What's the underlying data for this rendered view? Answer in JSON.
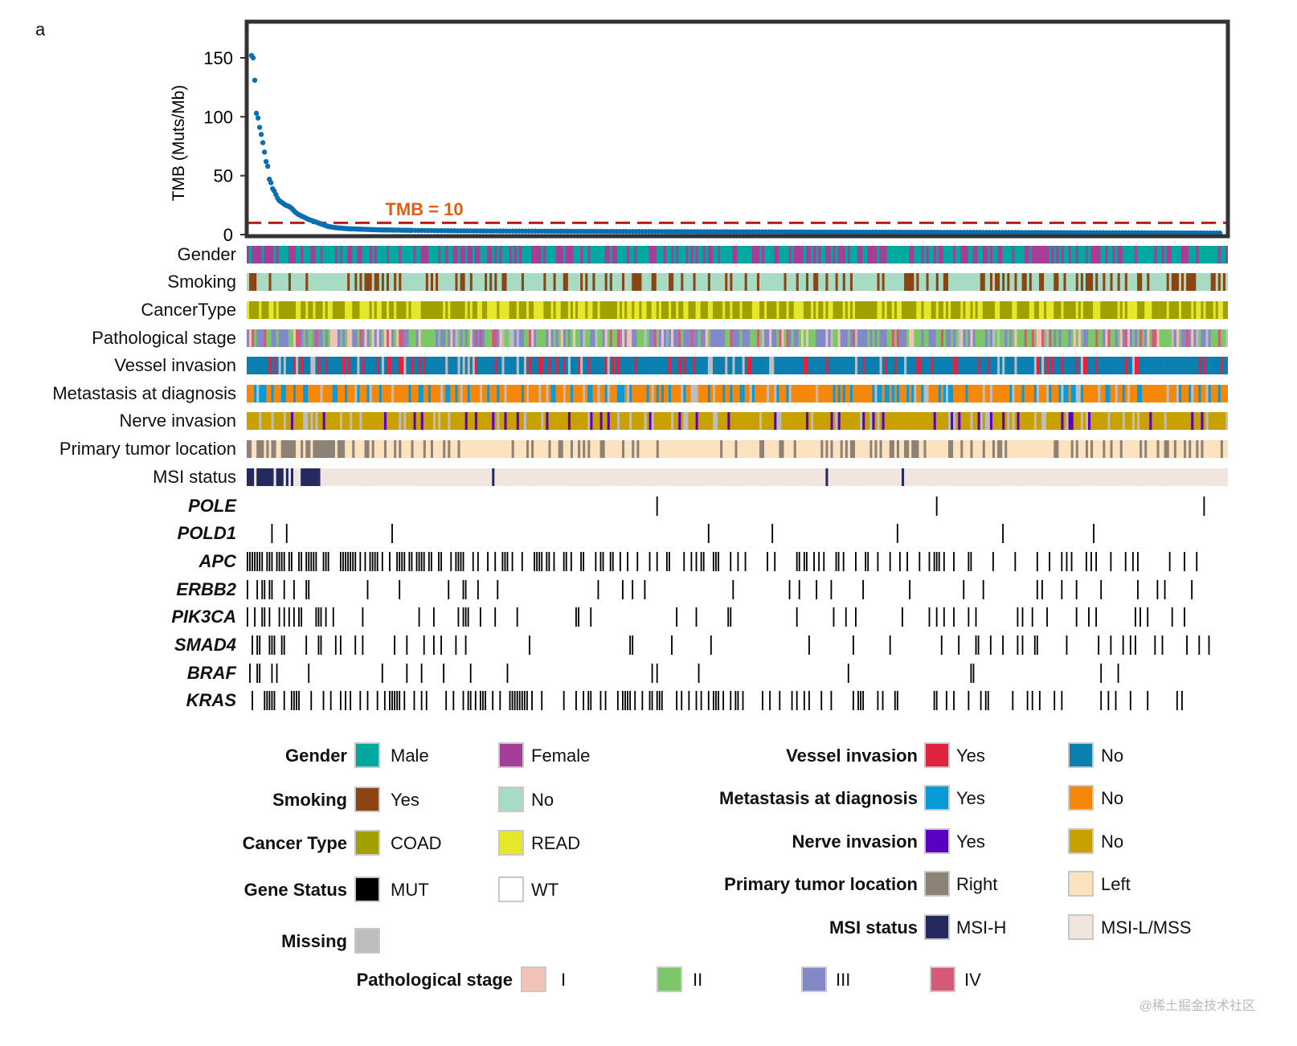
{
  "panel_letter": "a",
  "chart_data": {
    "type": "scatter",
    "ylabel": "TMB (Muts/Mb)",
    "ylim": [
      0,
      150
    ],
    "yticks": [
      "0",
      "50",
      "100",
      "150"
    ],
    "ytick_values": [
      0,
      50,
      100,
      150
    ],
    "threshold": {
      "value": 10,
      "label": "TMB = 10",
      "color": "#b71c1c",
      "label_color": "#e35f0e"
    },
    "point_color": "#0a6fb0",
    "series": [
      {
        "x": [
          1,
          2,
          3,
          4,
          5,
          6,
          7,
          8,
          9,
          10,
          11,
          12,
          13,
          14,
          15,
          16,
          17,
          18,
          20,
          22,
          24,
          26,
          28,
          30,
          33,
          36,
          40,
          44,
          48,
          52,
          56,
          60,
          70,
          80,
          90,
          100,
          120,
          150,
          200,
          260,
          320,
          380,
          440,
          500,
          560,
          600
        ],
        "y": [
          152,
          150,
          131,
          103,
          99,
          91,
          85,
          78,
          70,
          62,
          58,
          47,
          44,
          39,
          37,
          34,
          31,
          29,
          27,
          25,
          24,
          22,
          19,
          17,
          15,
          13,
          11,
          9,
          7,
          6,
          5.5,
          5,
          4.5,
          4,
          3.8,
          3.6,
          3.3,
          3,
          2.8,
          2.5,
          2.3,
          2.1,
          1.9,
          1.7,
          1.5,
          1.3
        ]
      }
    ]
  },
  "tracks": [
    {
      "label": "Gender",
      "kind": "clinical",
      "colors": [
        "#00a99d",
        "#a63d98"
      ],
      "weights": [
        0.6,
        0.4
      ]
    },
    {
      "label": "Smoking",
      "kind": "clinical",
      "colors": [
        "#8b4513",
        "#a8dbc4"
      ],
      "weights": [
        0.3,
        0.7
      ]
    },
    {
      "label": "CancerType",
      "kind": "clinical",
      "colors": [
        "#a0a000",
        "#e6e62a"
      ],
      "weights": [
        0.6,
        0.4
      ]
    },
    {
      "label": "Pathological stage",
      "kind": "clinical",
      "colors": [
        "#f4c3b8",
        "#7cc868",
        "#8288c8",
        "#d45a78",
        "#bdbdbd"
      ],
      "weights": [
        0.12,
        0.35,
        0.38,
        0.1,
        0.05
      ]
    },
    {
      "label": "Vessel invasion",
      "kind": "clinical",
      "colors": [
        "#e0243f",
        "#0a7fb0",
        "#bdbdbd"
      ],
      "weights": [
        0.15,
        0.75,
        0.1
      ]
    },
    {
      "label": "Metastasis at diagnosis",
      "kind": "clinical",
      "colors": [
        "#0a9ad8",
        "#f5870a",
        "#bdbdbd"
      ],
      "weights": [
        0.2,
        0.7,
        0.1
      ]
    },
    {
      "label": "Nerve invasion",
      "kind": "clinical",
      "colors": [
        "#5a00c0",
        "#c8a000",
        "#bdbdbd"
      ],
      "weights": [
        0.12,
        0.78,
        0.1
      ]
    },
    {
      "label": "Primary tumor location",
      "kind": "clinical",
      "colors": [
        "#8c8275",
        "#fde2c0"
      ],
      "weights": [
        0.2,
        0.8
      ]
    },
    {
      "label": "MSI status",
      "kind": "msi",
      "colors": [
        "#242a5e",
        "#f2e4df"
      ],
      "weights": [
        0.03,
        0.97
      ]
    },
    {
      "label": "POLE",
      "kind": "gene",
      "freq": 0.005
    },
    {
      "label": "POLD1",
      "kind": "gene",
      "freq": 0.01
    },
    {
      "label": "APC",
      "kind": "gene",
      "freq": 0.45
    },
    {
      "label": "ERBB2",
      "kind": "gene",
      "freq": 0.05
    },
    {
      "label": "PIK3CA",
      "kind": "gene",
      "freq": 0.09
    },
    {
      "label": "SMAD4",
      "kind": "gene",
      "freq": 0.1
    },
    {
      "label": "BRAF",
      "kind": "gene",
      "freq": 0.04
    },
    {
      "label": "KRAS",
      "kind": "gene",
      "freq": 0.3
    }
  ],
  "legend": {
    "left": [
      {
        "title": "Gender",
        "items": [
          {
            "label": "Male",
            "color": "#00a99d"
          },
          {
            "label": "Female",
            "color": "#a63d98"
          }
        ]
      },
      {
        "title": "Smoking",
        "items": [
          {
            "label": "Yes",
            "color": "#8b4513"
          },
          {
            "label": "No",
            "color": "#a8dbc4"
          }
        ]
      },
      {
        "title": "Cancer Type",
        "items": [
          {
            "label": "COAD",
            "color": "#a0a000"
          },
          {
            "label": "READ",
            "color": "#e6e62a"
          }
        ]
      },
      {
        "title": "Gene Status",
        "items": [
          {
            "label": "MUT",
            "color": "#000000"
          },
          {
            "label": "WT",
            "color": "#ffffff"
          }
        ]
      },
      {
        "title": "Missing",
        "items": [
          {
            "label": "",
            "color": "#bdbdbd"
          }
        ]
      }
    ],
    "right": [
      {
        "title": "Vessel invasion",
        "items": [
          {
            "label": "Yes",
            "color": "#e0243f"
          },
          {
            "label": "No",
            "color": "#0a7fb0"
          }
        ]
      },
      {
        "title": "Metastasis at diagnosis",
        "items": [
          {
            "label": "Yes",
            "color": "#0a9ad8"
          },
          {
            "label": "No",
            "color": "#f5870a"
          }
        ]
      },
      {
        "title": "Nerve invasion",
        "items": [
          {
            "label": "Yes",
            "color": "#5a00c0"
          },
          {
            "label": "No",
            "color": "#c8a000"
          }
        ]
      },
      {
        "title": "Primary tumor location",
        "items": [
          {
            "label": "Right",
            "color": "#8c8275"
          },
          {
            "label": "Left",
            "color": "#fde2c0"
          }
        ]
      },
      {
        "title": "MSI status",
        "items": [
          {
            "label": "MSI-H",
            "color": "#242a5e"
          },
          {
            "label": "MSI-L/MSS",
            "color": "#f2e4df"
          }
        ]
      }
    ],
    "stage": {
      "title": "Pathological stage",
      "items": [
        {
          "label": "I",
          "color": "#f4c3b8"
        },
        {
          "label": "II",
          "color": "#7cc868"
        },
        {
          "label": "III",
          "color": "#8288c8"
        },
        {
          "label": "IV",
          "color": "#d45a78"
        }
      ]
    }
  },
  "watermark": "@稀土掘金技术社区"
}
